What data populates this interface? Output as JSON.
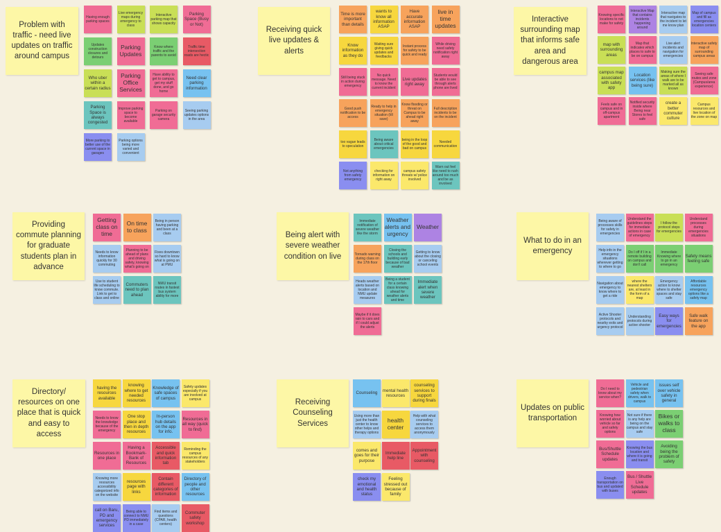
{
  "colors": {
    "background": "#f5f0e1",
    "header": "#fdf7a6",
    "pink": "#f06c95",
    "orange": "#f7a35c",
    "lime": "#c9df56",
    "yellow": "#f7d73e",
    "light-yellow": "#fbe86b",
    "red": "#e85a65",
    "blue": "#77c2f0",
    "teal": "#6cc5be",
    "green": "#7bcf73",
    "light-blue": "#a7ccf0",
    "violet": "#8a8ef0",
    "purple": "#ad83e3",
    "yellow-green": "#d7e372"
  },
  "clusters": [
    {
      "title": "Problem with traffic - need live updates on traffic around campus",
      "notes": [
        {
          "text": "Having enough parking spaces",
          "color": "pink",
          "size": "s"
        },
        {
          "text": "Live emergency maps during emergency to class",
          "color": "lime",
          "size": "s"
        },
        {
          "text": "Interactive parking map that shows capacity",
          "color": "lime",
          "size": "s"
        },
        {
          "text": "Parking Space (Busy or Not)",
          "color": "pink",
          "size": "m"
        },
        {
          "text": "Updates construction closures and detours",
          "color": "green",
          "size": "s"
        },
        {
          "text": "Parking Updates",
          "color": "pink",
          "size": "l"
        },
        {
          "text": "Know where traffic and the parents to avoid",
          "color": "green",
          "size": "s"
        },
        {
          "text": "Traffic time intersection roads are hectic",
          "color": "red",
          "size": "s"
        },
        {
          "text": "Who uber within a certain radius",
          "color": "lime",
          "size": "m"
        },
        {
          "text": "Parking Office Services",
          "color": "pink",
          "size": "l"
        },
        {
          "text": "Have ability to get to campus, get my stuff done, and go home",
          "color": "pink",
          "size": "s"
        },
        {
          "text": "Need clear parking information",
          "color": "blue",
          "size": "m"
        },
        {
          "text": "Parking Space is always congested",
          "color": "teal",
          "size": "m"
        },
        {
          "text": "Improve parking space to become available",
          "color": "pink",
          "size": "s"
        },
        {
          "text": "Parking on garage security camera",
          "color": "pink",
          "size": "s"
        },
        {
          "text": "Seeing parking updates options in the area",
          "color": "light-blue",
          "size": "s"
        },
        {
          "text": "More parking to better use of the current space in garages",
          "color": "violet",
          "size": "s"
        },
        {
          "text": "Parking options being more varied and convenient",
          "color": "light-blue",
          "size": "s"
        }
      ]
    },
    {
      "title": "Receiving quick live updates & alerts",
      "notes": [
        {
          "text": "Time is more important than details",
          "color": "orange",
          "size": "m"
        },
        {
          "text": "wants to know all information ASAP",
          "color": "yellow",
          "size": "m"
        },
        {
          "text": "Have accurate information ASAP",
          "color": "orange",
          "size": "m"
        },
        {
          "text": "live in time updates",
          "color": "orange",
          "size": "l"
        },
        {
          "text": "Know information as they do",
          "color": "yellow",
          "size": "m"
        },
        {
          "text": "Waiting sure giving quick updates and feedbacks",
          "color": "yellow",
          "size": "s"
        },
        {
          "text": "Instant process for safety to be quick and ready",
          "color": "orange",
          "size": "s"
        },
        {
          "text": "While driving need safety notification right away",
          "color": "pink",
          "size": "s"
        },
        {
          "text": "Still being stuck in action during emergency",
          "color": "pink",
          "size": "s"
        },
        {
          "text": "No quick message. Need to know the current incident",
          "color": "pink",
          "size": "s"
        },
        {
          "text": "Live updates right away",
          "color": "pink",
          "size": "m"
        },
        {
          "text": "Students would be able to see through alerts phone are lived",
          "color": "pink",
          "size": "s"
        },
        {
          "text": "Good push notification to be access",
          "color": "orange",
          "size": "s"
        },
        {
          "text": "Ready to help in emergency situation (till save)",
          "color": "orange",
          "size": "s"
        },
        {
          "text": "Know flooding or threat on Campus to be ahead right away",
          "color": "orange",
          "size": "s"
        },
        {
          "text": "Full description incidents to be on the incident",
          "color": "orange",
          "size": "s"
        },
        {
          "text": "too vague leads to speculation",
          "color": "yellow",
          "size": "s"
        },
        {
          "text": "Being aware about critical emergencies",
          "color": "teal",
          "size": "s"
        },
        {
          "text": "being in the loop of the good and bad on campus",
          "color": "yellow",
          "size": "s"
        },
        {
          "text": "Needed communication",
          "color": "yellow",
          "size": "s"
        },
        {
          "text": "Not anything from safety emergency",
          "color": "violet",
          "size": "s"
        },
        {
          "text": "checking for information on right away",
          "color": "light-yellow",
          "size": "s"
        },
        {
          "text": "campus safety threats w/ police involved",
          "color": "light-yellow",
          "size": "s"
        },
        {
          "text": "Warn out feel like need to rush around too much and be as involved",
          "color": "teal",
          "size": "s"
        }
      ]
    },
    {
      "title": "Interactive surrounding map that informs safe area and dangerous area",
      "notes": [
        {
          "text": "Knowing specific locations to not make for safety",
          "color": "pink",
          "size": "s"
        },
        {
          "text": "Interactive Map that contains incidents happening around",
          "color": "purple",
          "size": "s"
        },
        {
          "text": "Interactive map that navigates to the incident to let me know plan",
          "color": "light-blue",
          "size": "s"
        },
        {
          "text": "Map of campus and fill as emergencies location centers",
          "color": "violet",
          "size": "s"
        },
        {
          "text": "map with surrounding areas",
          "color": "lime",
          "size": "m"
        },
        {
          "text": "Map that indicates which places to safe to be on campus",
          "color": "pink",
          "size": "s"
        },
        {
          "text": "Live alert incidents and navigation for emergencies",
          "color": "light-blue",
          "size": "s"
        },
        {
          "text": "Interactive safety map of surrounding campus areas",
          "color": "orange",
          "size": "s"
        },
        {
          "text": "campus map associated with safety app",
          "color": "lime",
          "size": "m"
        },
        {
          "text": "Location services (like being sure)",
          "color": "blue",
          "size": "m"
        },
        {
          "text": "Making sure the areas of where I walk are to be marked all as known",
          "color": "lime",
          "size": "s"
        },
        {
          "text": "Seeing safe routes and zone (Campus/area experience)",
          "color": "pink",
          "size": "s"
        },
        {
          "text": "Feels safe on campus and in off-campus apartment",
          "color": "pink",
          "size": "s"
        },
        {
          "text": "Notified security inside where Being near Stores to feel safe",
          "color": "pink",
          "size": "s"
        },
        {
          "text": "create a better commuter culture",
          "color": "light-yellow",
          "size": "m"
        },
        {
          "text": "Campus resources and live location of the zone on map",
          "color": "light-yellow",
          "size": "s"
        }
      ]
    },
    {
      "title": "Providing commute planning for graduate students plan in advance",
      "notes": [
        {
          "text": "Getting class on time",
          "color": "pink",
          "size": "l"
        },
        {
          "text": "On time to class",
          "color": "orange",
          "size": "l"
        },
        {
          "text": "Being in person having parking and been at a class",
          "color": "light-blue",
          "size": "s"
        },
        {
          "text": "Needs to know information quickly for 30 commuting",
          "color": "light-blue",
          "size": "s"
        },
        {
          "text": "Planning to be ahead of plans and driving safety, knowing what's going on",
          "color": "pink",
          "size": "s"
        },
        {
          "text": "Fixes downtown so hard to know what is going on at PMU",
          "color": "light-blue",
          "size": "s"
        },
        {
          "text": "Use to student life scheduling to know commute. Link to get to class and online",
          "color": "light-blue",
          "size": "s"
        },
        {
          "text": "Commuters need to plan ahead",
          "color": "teal",
          "size": "m"
        },
        {
          "text": "NMU transit routes in fastest bus system ability for more",
          "color": "teal",
          "size": "s"
        }
      ]
    },
    {
      "title": "Being alert with severe weather condition on live",
      "notes": [
        {
          "text": "Immediate notification of severe weather like the storm",
          "color": "teal",
          "size": "s"
        },
        {
          "text": "Weather alerts and urgency",
          "color": "blue",
          "size": "l"
        },
        {
          "text": "Weather",
          "color": "purple",
          "size": "l"
        },
        {
          "text": "Tornado warning during class on the 17th floor",
          "color": "orange",
          "size": "s"
        },
        {
          "text": "Closing the schools and building early because of bad weather",
          "color": "teal",
          "size": "s"
        },
        {
          "text": "Getting to know about the closing or canceling school events",
          "color": "light-blue",
          "size": "s"
        },
        {
          "text": "Heads weather alerts based on location and NMU update measures",
          "color": "light-blue",
          "size": "s"
        },
        {
          "text": "Being a student for a certain class knowing ahead for weather alerts and time",
          "color": "teal",
          "size": "s"
        },
        {
          "text": "Immediate alert when severe weather",
          "color": "teal",
          "size": "m"
        },
        {
          "text": "Maybe if it does rain to cars and if I could adjust the alerts",
          "color": "pink",
          "size": "s"
        }
      ]
    },
    {
      "title": "What to do in an emergency",
      "notes": [
        {
          "text": "Being aware of processes skills for safety in emergencies",
          "color": "light-blue",
          "size": "s"
        },
        {
          "text": "Understand the guidelines steps for immediate actions in case of emergency",
          "color": "pink",
          "size": "s"
        },
        {
          "text": "I follow the protocol steps for emergencies",
          "color": "lime",
          "size": "s"
        },
        {
          "text": "Understand processes during emergencies situations",
          "color": "pink",
          "size": "s"
        },
        {
          "text": "Help info in the emergency situations wherever getting to where to go",
          "color": "light-blue",
          "size": "s"
        },
        {
          "text": "Do I off if I in a remote building on campus and don't call",
          "color": "green",
          "size": "s"
        },
        {
          "text": "Immediate Knowing where to go in an emergency",
          "color": "green",
          "size": "s"
        },
        {
          "text": "Safety means feeling safe",
          "color": "green",
          "size": "m"
        },
        {
          "text": "Navigation about emergency to know where to get a ride",
          "color": "light-blue",
          "size": "s"
        },
        {
          "text": "where the nearest shelters are, at least in the form of a map",
          "color": "light-yellow",
          "size": "s"
        },
        {
          "text": "Emergency action to know where to shelter spaces and stay safe",
          "color": "light-blue",
          "size": "s"
        },
        {
          "text": "Affordable resources emergency options like a safety map",
          "color": "blue",
          "size": "s"
        },
        {
          "text": "Active Shooter protocols and nearby exits and urgency protocol",
          "color": "light-blue",
          "size": "s"
        },
        {
          "text": "Understanding protocols during active shooter",
          "color": "light-blue",
          "size": "s"
        },
        {
          "text": "Easy ways for emergencies",
          "color": "violet",
          "size": "m"
        },
        {
          "text": "Safe walk feature on the app",
          "color": "orange",
          "size": "m"
        }
      ]
    },
    {
      "title": "Directory/ resources on one place that is quick and easy to access",
      "notes": [
        {
          "text": "having the resources available",
          "color": "yellow",
          "size": "m"
        },
        {
          "text": "knowing where to get needed resources",
          "color": "yellow",
          "size": "m"
        },
        {
          "text": "Knowledge of safe spaces of campus",
          "color": "blue",
          "size": "m"
        },
        {
          "text": "Safety updates especially if you are involved at campus",
          "color": "light-yellow",
          "size": "s"
        },
        {
          "text": "Needs to know the knowledge because of the emergency",
          "color": "pink",
          "size": "s"
        },
        {
          "text": "One stop place and then in depth resources",
          "color": "yellow",
          "size": "m"
        },
        {
          "text": "In-person hub details on the app for info.",
          "color": "blue",
          "size": "m"
        },
        {
          "text": "Resources in all way (quick to find)",
          "color": "pink",
          "size": "m"
        },
        {
          "text": "Resources in one place",
          "color": "pink",
          "size": "m"
        },
        {
          "text": "Having a Bookmark-Bank of Resources",
          "color": "pink",
          "size": "m"
        },
        {
          "text": "Accessible and quick information tab",
          "color": "red",
          "size": "m"
        },
        {
          "text": "Reminding the campus resources of any stakeholders",
          "color": "light-yellow",
          "size": "s"
        },
        {
          "text": "Knowing more resources accessibility categorized info on the website",
          "color": "light-blue",
          "size": "s"
        },
        {
          "text": "resources page with links",
          "color": "yellow",
          "size": "m"
        },
        {
          "text": "Contain different categories of information",
          "color": "red",
          "size": "m"
        },
        {
          "text": "Directory of people and other resources",
          "color": "blue",
          "size": "m"
        },
        {
          "text": "call on Baru, PD and emergency services",
          "color": "violet",
          "size": "m"
        },
        {
          "text": "Being able to connect to NMU PD immediately in a case",
          "color": "violet",
          "size": "s"
        },
        {
          "text": "Find items and questions (CPAR, health centers)",
          "color": "light-blue",
          "size": "s"
        },
        {
          "text": "Commuter safety workshop",
          "color": "red",
          "size": "m"
        }
      ]
    },
    {
      "title": "Receiving Counseling Services",
      "notes": [
        {
          "text": "Counseling",
          "color": "blue",
          "size": "m"
        },
        {
          "text": "mental health resources",
          "color": "light-yellow",
          "size": "m"
        },
        {
          "text": "counseling services to support during finals",
          "color": "yellow",
          "size": "m"
        },
        {
          "text": "Using more than just the health center to know other helps and therapy options",
          "color": "light-blue",
          "size": "s"
        },
        {
          "text": "health center",
          "color": "yellow",
          "size": "l"
        },
        {
          "text": "Help with what counseling services to access them anonymously",
          "color": "light-blue",
          "size": "s"
        },
        {
          "text": "comes and goes for their purpose",
          "color": "light-yellow",
          "size": "m"
        },
        {
          "text": "Immediate help line",
          "color": "red",
          "size": "m"
        },
        {
          "text": "Appointment with counseling",
          "color": "red",
          "size": "m"
        },
        {
          "text": "check my emotional and health status",
          "color": "violet",
          "size": "m"
        },
        {
          "text": "Feeling stressed out because of family",
          "color": "light-yellow",
          "size": "m"
        }
      ]
    },
    {
      "title": "Updates on public transportation",
      "notes": [
        {
          "text": "Do I need to know about my service when?",
          "color": "pink",
          "size": "s"
        },
        {
          "text": "Vehicle and pedestrian safety when drivers, walk to campus",
          "color": "blue",
          "size": "s"
        },
        {
          "text": "issues self over vehicle safety in general",
          "color": "blue",
          "size": "m"
        },
        {
          "text": "Knowing how worried about vehicle so far and safety options",
          "color": "pink",
          "size": "s"
        },
        {
          "text": "Not sure if there is any help are being on the campus and stay safe",
          "color": "light-blue",
          "size": "s"
        },
        {
          "text": "Bikes or walks to class",
          "color": "green",
          "size": "l"
        },
        {
          "text": "Bus/Shuttle Schedule updates",
          "color": "pink",
          "size": "m"
        },
        {
          "text": "Knowing the bus location and where it is going and transit",
          "color": "violet",
          "size": "s"
        },
        {
          "text": "Avoiding being the problem of safety",
          "color": "green",
          "size": "m"
        },
        {
          "text": "Enough transportation on bus and updated with buses",
          "color": "violet",
          "size": "s"
        },
        {
          "text": "Bus / Shuttle Live Schedule updates",
          "color": "pink",
          "size": "m"
        }
      ]
    }
  ]
}
